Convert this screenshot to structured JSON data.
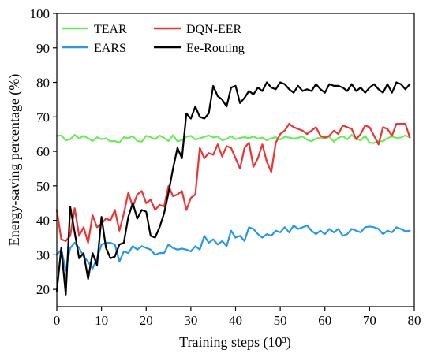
{
  "chart_data": {
    "type": "line",
    "xlabel": "Training steps (10³)",
    "ylabel": "Energy-saving percentage (%)",
    "xlim": [
      0,
      80
    ],
    "ylim": [
      15,
      100
    ],
    "x_ticks": [
      "0",
      "10",
      "20",
      "30",
      "40",
      "50",
      "60",
      "70",
      "80"
    ],
    "y_ticks": [
      "20",
      "30",
      "40",
      "50",
      "60",
      "70",
      "80",
      "90",
      "100"
    ],
    "grid": false,
    "legend_position": "top-left",
    "series": [
      {
        "name": "TEAR",
        "color": "#66ee55",
        "x": [
          0,
          1,
          2,
          3,
          4,
          5,
          6,
          7,
          8,
          9,
          10,
          11,
          12,
          13,
          14,
          15,
          16,
          17,
          18,
          19,
          20,
          21,
          22,
          23,
          24,
          25,
          26,
          27,
          28,
          29,
          30,
          31,
          32,
          33,
          34,
          35,
          36,
          37,
          38,
          39,
          40,
          41,
          42,
          43,
          44,
          45,
          46,
          47,
          48,
          49,
          50,
          51,
          52,
          53,
          54,
          55,
          56,
          57,
          58,
          59,
          60,
          61,
          62,
          63,
          64,
          65,
          66,
          67,
          68,
          69,
          70,
          71,
          72,
          73,
          74,
          75,
          76,
          77,
          78,
          79
        ],
        "values": [
          64.5,
          64.6,
          63.2,
          63.5,
          64.8,
          63.7,
          64.5,
          63.8,
          63.0,
          64.1,
          63.5,
          63.8,
          62.9,
          63.0,
          62.5,
          64.1,
          63.8,
          64.4,
          63.0,
          62.8,
          64.5,
          64.1,
          63.5,
          64.6,
          63.9,
          63.0,
          64.7,
          62.9,
          63.3,
          64.2,
          64.5,
          63.4,
          63.8,
          64.2,
          64.6,
          64.0,
          64.3,
          63.2,
          63.6,
          64.4,
          63.5,
          63.9,
          64.1,
          63.8,
          64.3,
          63.7,
          64.0,
          63.2,
          63.8,
          64.1,
          63.4,
          64.2,
          64.0,
          63.7,
          63.9,
          64.3,
          63.4,
          62.9,
          63.7,
          64.0,
          63.8,
          64.2,
          62.8,
          63.9,
          64.4,
          63.5,
          64.8,
          63.6,
          63.2,
          64.5,
          62.5,
          62.4,
          63.0,
          62.9,
          63.8,
          64.3,
          63.9,
          64.0,
          64.6,
          64.0
        ]
      },
      {
        "name": "DQN-EER",
        "color": "#ee3333",
        "x": [
          0,
          1,
          2,
          3,
          4,
          5,
          6,
          7,
          8,
          9,
          10,
          11,
          12,
          13,
          14,
          15,
          16,
          17,
          18,
          19,
          20,
          21,
          22,
          23,
          24,
          25,
          26,
          27,
          28,
          29,
          30,
          31,
          32,
          33,
          34,
          35,
          36,
          37,
          38,
          39,
          40,
          41,
          42,
          43,
          44,
          45,
          46,
          47,
          48,
          49,
          50,
          51,
          52,
          53,
          54,
          55,
          56,
          57,
          58,
          59,
          60,
          61,
          62,
          63,
          64,
          65,
          66,
          67,
          68,
          69,
          70,
          71,
          72,
          73,
          74,
          75,
          76,
          77,
          78,
          79
        ],
        "values": [
          43.0,
          34.5,
          34.0,
          35.5,
          43.5,
          35.5,
          38.0,
          33.5,
          41.5,
          38.0,
          39.0,
          40.5,
          40.0,
          43.0,
          37.0,
          42.0,
          48.0,
          44.0,
          47.5,
          48.5,
          45.0,
          46.0,
          43.0,
          44.5,
          44.0,
          50.0,
          47.0,
          47.5,
          48.5,
          43.0,
          46.5,
          47.5,
          61.0,
          58.0,
          59.5,
          59.0,
          62.0,
          58.5,
          61.5,
          61.0,
          58.0,
          55.0,
          61.0,
          62.5,
          55.5,
          58.0,
          62.0,
          57.0,
          54.0,
          62.5,
          65.0,
          66.0,
          68.0,
          67.0,
          66.5,
          66.0,
          65.0,
          66.0,
          67.0,
          64.5,
          64.0,
          64.5,
          66.0,
          65.0,
          67.5,
          67.0,
          66.5,
          63.5,
          65.0,
          67.5,
          67.0,
          64.5,
          62.0,
          67.0,
          66.5,
          64.5,
          68.0,
          68.0,
          68.0,
          64.0
        ]
      },
      {
        "name": "EARS",
        "color": "#2299ee",
        "x": [
          0,
          1,
          2,
          3,
          4,
          5,
          6,
          7,
          8,
          9,
          10,
          11,
          12,
          13,
          14,
          15,
          16,
          17,
          18,
          19,
          20,
          21,
          22,
          23,
          24,
          25,
          26,
          27,
          28,
          29,
          30,
          31,
          32,
          33,
          34,
          35,
          36,
          37,
          38,
          39,
          40,
          41,
          42,
          43,
          44,
          45,
          46,
          47,
          48,
          49,
          50,
          51,
          52,
          53,
          54,
          55,
          56,
          57,
          58,
          59,
          60,
          61,
          62,
          63,
          64,
          65,
          66,
          67,
          68,
          69,
          70,
          71,
          72,
          73,
          74,
          75,
          76,
          77,
          78,
          79
        ],
        "values": [
          30.0,
          31.5,
          25.5,
          32.0,
          33.5,
          32.0,
          29.5,
          28.0,
          26.0,
          29.0,
          33.0,
          33.5,
          33.5,
          33.0,
          28.0,
          31.0,
          30.5,
          32.5,
          31.5,
          32.5,
          32.0,
          31.5,
          30.0,
          30.5,
          30.5,
          33.0,
          32.0,
          31.5,
          31.8,
          31.5,
          31.0,
          32.5,
          31.5,
          35.5,
          33.5,
          34.5,
          33.0,
          34.0,
          32.5,
          37.0,
          35.0,
          35.5,
          34.0,
          38.0,
          37.5,
          36.0,
          35.0,
          36.0,
          35.5,
          37.0,
          36.5,
          38.0,
          36.5,
          38.5,
          37.5,
          38.0,
          38.5,
          37.0,
          36.0,
          37.0,
          36.0,
          37.5,
          36.5,
          37.5,
          35.5,
          36.0,
          37.5,
          37.0,
          36.5,
          38.0,
          38.2,
          38.0,
          37.5,
          36.0,
          37.0,
          36.5,
          38.0,
          37.5,
          36.8,
          37.0
        ]
      },
      {
        "name": "Ee-Routing",
        "color": "#000000",
        "x": [
          0,
          1,
          2,
          3,
          4,
          5,
          6,
          7,
          8,
          9,
          10,
          11,
          12,
          13,
          14,
          15,
          16,
          17,
          18,
          19,
          20,
          21,
          22,
          23,
          24,
          25,
          26,
          27,
          28,
          29,
          30,
          31,
          32,
          33,
          34,
          35,
          36,
          37,
          38,
          39,
          40,
          41,
          42,
          43,
          44,
          45,
          46,
          47,
          48,
          49,
          50,
          51,
          52,
          53,
          54,
          55,
          56,
          57,
          58,
          59,
          60,
          61,
          62,
          63,
          64,
          65,
          66,
          67,
          68,
          69,
          70,
          71,
          72,
          73,
          74,
          75,
          76,
          77,
          78,
          79
        ],
        "values": [
          19.5,
          32.0,
          18.5,
          44.0,
          36.5,
          29.0,
          30.5,
          23.0,
          30.5,
          27.0,
          41.0,
          32.0,
          29.0,
          29.5,
          33.0,
          33.5,
          41.0,
          45.0,
          40.5,
          43.0,
          42.5,
          35.5,
          35.0,
          38.0,
          42.0,
          48.0,
          55.0,
          61.0,
          58.0,
          71.0,
          69.5,
          73.0,
          70.0,
          69.5,
          71.0,
          79.0,
          76.0,
          75.0,
          73.0,
          78.5,
          79.0,
          74.0,
          75.5,
          77.5,
          76.5,
          78.5,
          77.5,
          80.0,
          78.5,
          78.0,
          80.0,
          79.5,
          78.0,
          77.0,
          79.0,
          77.5,
          78.0,
          77.5,
          79.5,
          78.0,
          77.0,
          79.5,
          79.0,
          79.0,
          78.5,
          77.5,
          79.5,
          77.5,
          78.5,
          77.0,
          78.5,
          79.5,
          78.0,
          77.0,
          79.5,
          77.0,
          80.0,
          79.5,
          78.0,
          79.5
        ]
      }
    ]
  }
}
